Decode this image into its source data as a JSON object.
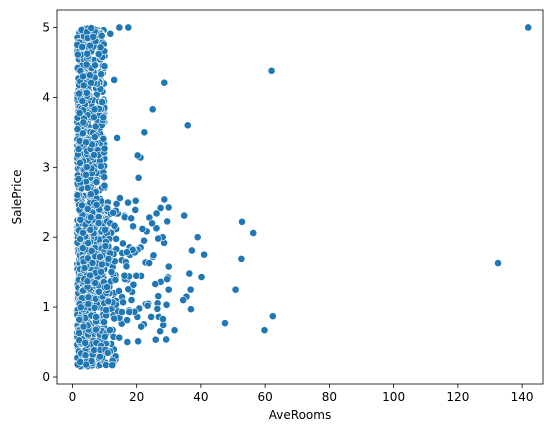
{
  "chart_data": {
    "type": "scatter",
    "title": "",
    "xlabel": "AveRooms",
    "ylabel": "SalePrice",
    "xlim": [
      -4.8,
      146.5
    ],
    "ylim": [
      -0.1,
      5.25
    ],
    "xticks": [
      0,
      20,
      40,
      60,
      80,
      100,
      120,
      140
    ],
    "yticks": [
      0,
      1,
      2,
      3,
      4,
      5
    ],
    "grid": false,
    "legend": "none",
    "color": "#1f77b4",
    "clusters": [
      {
        "x_range": [
          1.5,
          10
        ],
        "y_range": [
          0.15,
          5.0
        ],
        "count": 1100,
        "note": "dense vertical band"
      },
      {
        "x_range": [
          2,
          14
        ],
        "y_range": [
          0.15,
          2.5
        ],
        "count": 260
      },
      {
        "x_range": [
          10,
          30
        ],
        "y_range": [
          0.5,
          2.5
        ],
        "count": 110
      }
    ],
    "points": [
      {
        "x": 141.9,
        "y": 5.0
      },
      {
        "x": 132.5,
        "y": 1.63
      },
      {
        "x": 62.0,
        "y": 4.38
      },
      {
        "x": 62.4,
        "y": 0.87
      },
      {
        "x": 59.8,
        "y": 0.67
      },
      {
        "x": 56.3,
        "y": 2.06
      },
      {
        "x": 52.8,
        "y": 2.22
      },
      {
        "x": 52.6,
        "y": 1.69
      },
      {
        "x": 50.8,
        "y": 1.25
      },
      {
        "x": 47.5,
        "y": 0.77
      },
      {
        "x": 41.0,
        "y": 1.75
      },
      {
        "x": 40.2,
        "y": 1.43
      },
      {
        "x": 39.0,
        "y": 2.0
      },
      {
        "x": 37.2,
        "y": 1.81
      },
      {
        "x": 36.4,
        "y": 1.48
      },
      {
        "x": 36.8,
        "y": 1.25
      },
      {
        "x": 35.5,
        "y": 1.15
      },
      {
        "x": 34.8,
        "y": 2.31
      },
      {
        "x": 34.5,
        "y": 1.1
      },
      {
        "x": 36.9,
        "y": 0.97
      },
      {
        "x": 35.9,
        "y": 3.6
      },
      {
        "x": 31.8,
        "y": 0.67
      },
      {
        "x": 30.0,
        "y": 1.58
      },
      {
        "x": 28.6,
        "y": 4.21
      },
      {
        "x": 28.6,
        "y": 2.54
      },
      {
        "x": 28.1,
        "y": 2.0
      },
      {
        "x": 26.7,
        "y": 1.98
      },
      {
        "x": 25.0,
        "y": 3.83
      },
      {
        "x": 22.4,
        "y": 3.5
      },
      {
        "x": 21.2,
        "y": 3.14
      },
      {
        "x": 20.3,
        "y": 3.17
      },
      {
        "x": 25.8,
        "y": 1.33
      },
      {
        "x": 26.9,
        "y": 0.86
      },
      {
        "x": 28.2,
        "y": 0.83
      },
      {
        "x": 29.5,
        "y": 1.4
      },
      {
        "x": 24.5,
        "y": 0.86
      },
      {
        "x": 23.4,
        "y": 1.02
      },
      {
        "x": 21.4,
        "y": 0.72
      },
      {
        "x": 20.6,
        "y": 2.85
      },
      {
        "x": 17.4,
        "y": 5.0
      },
      {
        "x": 14.6,
        "y": 5.0
      },
      {
        "x": 13.0,
        "y": 4.25
      },
      {
        "x": 11.8,
        "y": 4.91
      },
      {
        "x": 12.4,
        "y": 0.17
      },
      {
        "x": 13.9,
        "y": 3.42
      },
      {
        "x": 14.8,
        "y": 2.56
      },
      {
        "x": 18.3,
        "y": 2.27
      },
      {
        "x": 19.7,
        "y": 2.52
      },
      {
        "x": 22.3,
        "y": 1.95
      },
      {
        "x": 23.9,
        "y": 1.63
      },
      {
        "x": 19.0,
        "y": 1.32
      },
      {
        "x": 16.2,
        "y": 1.45
      },
      {
        "x": 17.7,
        "y": 0.93
      },
      {
        "x": 15.4,
        "y": 0.93
      }
    ]
  }
}
